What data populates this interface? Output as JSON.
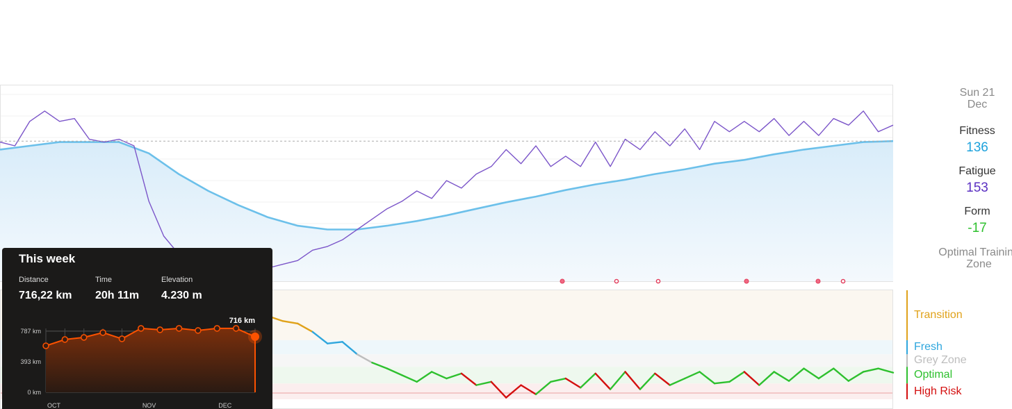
{
  "fitness_chart": {
    "type": "line",
    "xlim": [
      0,
      60
    ],
    "ylim": [
      -13,
      196
    ],
    "series": [
      {
        "line_color": "#6cc0ea",
        "x": [
          0,
          2,
          4,
          6,
          8,
          10,
          12,
          14,
          16,
          18,
          20,
          22,
          24,
          26,
          28,
          30,
          32,
          34,
          36,
          38,
          40,
          42,
          44,
          46,
          48,
          50,
          52,
          54,
          56,
          58,
          60
        ],
        "values": [
          127,
          131,
          135,
          135,
          135,
          123,
          101,
          83,
          68,
          55,
          46,
          42,
          42,
          46,
          51,
          57,
          64,
          71,
          77,
          84,
          90,
          95,
          101,
          106,
          112,
          116,
          122,
          127,
          131,
          135,
          136
        ]
      },
      {
        "line_color": "#7b55c9",
        "x": [
          0,
          1,
          2,
          3,
          4,
          5,
          6,
          7,
          8,
          9,
          10,
          11,
          12,
          13,
          14,
          15,
          16,
          17,
          18,
          19,
          20,
          21,
          22,
          23,
          24,
          25,
          26,
          27,
          28,
          29,
          30,
          31,
          32,
          33,
          34,
          35,
          36,
          37,
          38,
          39,
          40,
          41,
          42,
          43,
          44,
          45,
          46,
          47,
          48,
          49,
          50,
          51,
          52,
          53,
          54,
          55,
          56,
          57,
          58,
          59,
          60
        ],
        "values": [
          135,
          131,
          157,
          168,
          157,
          160,
          138,
          135,
          138,
          131,
          72,
          35,
          16,
          5,
          1,
          -2,
          -4,
          -2,
          1,
          5,
          9,
          20,
          24,
          31,
          42,
          53,
          64,
          72,
          83,
          75,
          94,
          86,
          101,
          109,
          127,
          112,
          131,
          109,
          120,
          109,
          135,
          109,
          138,
          127,
          146,
          131,
          149,
          127,
          157,
          146,
          157,
          146,
          160,
          142,
          157,
          142,
          160,
          153,
          168,
          146,
          153
        ]
      }
    ]
  },
  "form_chart": {
    "type": "line",
    "xlim": [
      0,
      60
    ],
    "ylim": [
      -49,
      82
    ],
    "x": [
      18,
      19,
      20,
      21,
      22,
      23,
      24,
      25,
      26,
      27,
      28,
      29,
      30,
      31,
      32,
      33,
      34,
      35,
      36,
      37,
      38,
      39,
      40,
      41,
      42,
      43,
      44,
      45,
      46,
      47,
      48,
      49,
      50,
      51,
      52,
      53,
      54,
      55,
      56,
      57,
      58,
      59,
      60
    ],
    "values": [
      51,
      45,
      42,
      32,
      18,
      20,
      5,
      -5,
      -12,
      -20,
      -28,
      -16,
      -24,
      -18,
      -32,
      -28,
      -47,
      -32,
      -43,
      -28,
      -24,
      -35,
      -18,
      -37,
      -16,
      -37,
      -18,
      -32,
      -24,
      -16,
      -30,
      -28,
      -16,
      -32,
      -16,
      -27,
      -12,
      -24,
      -12,
      -27,
      -16,
      -12,
      -17
    ],
    "zones": [
      {
        "name": "Transition",
        "min": 22,
        "max": 82,
        "color": "#e0a21a",
        "band": "#fbf7f0"
      },
      {
        "name": "Fresh",
        "min": 5,
        "max": 22,
        "color": "#2ea6dd",
        "band": "#eef7fb"
      },
      {
        "name": "Grey Zone",
        "min": -10,
        "max": 5,
        "color": "#bdbdbd",
        "band": "#f6f6f6"
      },
      {
        "name": "Optimal",
        "min": -30,
        "max": -10,
        "color": "#2ec02e",
        "band": "#eef8ee"
      },
      {
        "name": "High Risk",
        "min": -49,
        "max": -30,
        "color": "#d40f0f",
        "band": "#fbeeee"
      }
    ]
  },
  "sidebar": {
    "date": "Sun 21 Dec",
    "metrics": [
      {
        "label": "Fitness",
        "value": 136,
        "color": "#1da2dc"
      },
      {
        "label": "Fatigue",
        "value": 153,
        "color": "#5a2fc2"
      },
      {
        "label": "Form",
        "value": -17,
        "color": "#2ec02e"
      }
    ],
    "zone_title": "Optimal Training Zone"
  },
  "week_card": {
    "title": "This week",
    "stats": [
      {
        "label": "Distance",
        "value": "716,22 km"
      },
      {
        "label": "Time",
        "value": "20h 11m"
      },
      {
        "label": "Elevation",
        "value": "4.230 m"
      }
    ],
    "chart": {
      "type": "line",
      "color": "#fc5200",
      "x": [
        0,
        1,
        2,
        3,
        4,
        5,
        6,
        7,
        8,
        9,
        10,
        11
      ],
      "values": [
        599,
        680,
        707,
        769,
        689,
        823,
        805,
        823,
        796,
        823,
        823,
        716
      ],
      "xlim": [
        0,
        11
      ],
      "ylim": [
        0,
        840
      ],
      "yticks": [
        {
          "value": 787,
          "label": "787 km"
        },
        {
          "value": 393,
          "label": "393 km"
        },
        {
          "value": 0,
          "label": "0 km"
        }
      ],
      "xticks": [
        {
          "value": 0,
          "label": "OCT"
        },
        {
          "value": 5,
          "label": "NOV"
        },
        {
          "value": 9,
          "label": "DEC"
        }
      ],
      "highlight_label": "716 km"
    }
  }
}
